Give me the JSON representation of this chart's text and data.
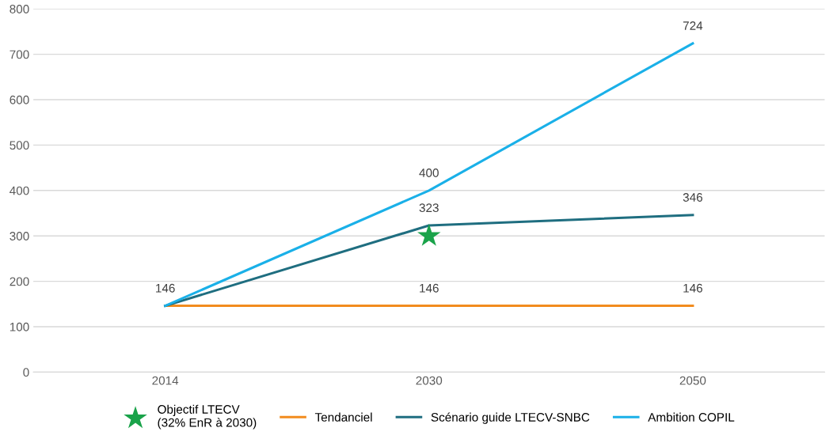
{
  "chart_data": {
    "type": "line",
    "categories": [
      "2014",
      "2030",
      "2050"
    ],
    "series": [
      {
        "name": "Objectif LTECV\n(32% EnR à 2030)",
        "type": "scatter",
        "marker": "star",
        "color": "#1aa34a",
        "values": [
          null,
          300,
          null
        ]
      },
      {
        "name": "Tendanciel",
        "color": "#f28c1e",
        "values": [
          146,
          146,
          146
        ],
        "value_labels": [
          "146",
          "146",
          "146"
        ]
      },
      {
        "name": "Scénario guide LTECV-SNBC",
        "color": "#1f6e80",
        "values": [
          146,
          323,
          346
        ],
        "value_labels": [
          null,
          "323",
          "346"
        ]
      },
      {
        "name": "Ambition COPIL",
        "color": "#1ab0e8",
        "values": [
          146,
          400,
          724
        ],
        "value_labels": [
          null,
          "400",
          "724"
        ]
      }
    ],
    "ylim": [
      0,
      800
    ],
    "yticks": [
      0,
      100,
      200,
      300,
      400,
      500,
      600,
      700,
      800
    ],
    "grid": "y",
    "legend": "bottom",
    "line_style": "solid"
  }
}
